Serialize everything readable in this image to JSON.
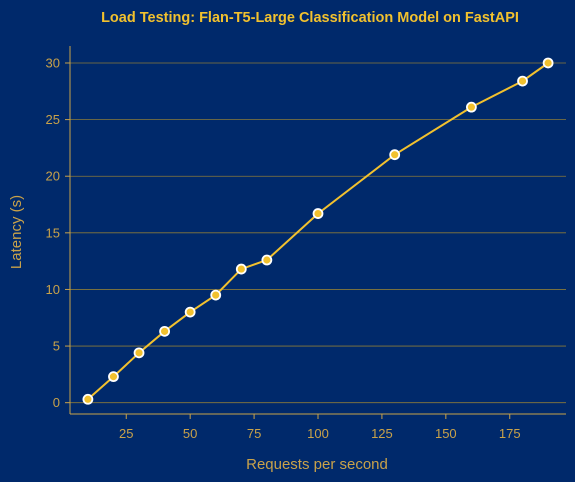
{
  "chart_data": {
    "type": "line",
    "title": "Load Testing: Flan-T5-Large Classification Model on FastAPI",
    "xlabel": "Requests per second",
    "ylabel": "Latency (s)",
    "xlim": [
      3,
      197
    ],
    "ylim": [
      -1.0,
      31.5
    ],
    "x_ticks": [
      25,
      50,
      75,
      100,
      125,
      150,
      175
    ],
    "y_ticks": [
      0,
      5,
      10,
      15,
      20,
      25,
      30
    ],
    "grid": "horizontal",
    "series": [
      {
        "x": [
          10,
          20,
          30,
          40,
          50,
          60,
          70,
          80,
          100,
          130,
          160,
          180,
          190
        ],
        "values": [
          0.3,
          2.3,
          4.4,
          6.3,
          8.0,
          9.5,
          11.8,
          12.6,
          16.7,
          21.9,
          26.1,
          28.4,
          30.0
        ]
      }
    ],
    "colors": {
      "background": "#00296b",
      "line": "#f2c12e",
      "marker_edge": "#ffffff",
      "text": "#c9a24a",
      "title": "#f2c12e"
    }
  }
}
